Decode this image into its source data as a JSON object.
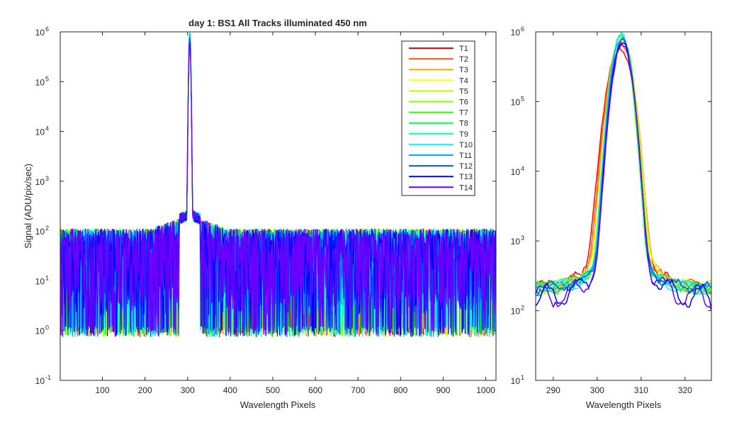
{
  "chart_data": [
    {
      "type": "line",
      "title": "day 1: BS1   All Tracks illuminated   450 nm",
      "xlabel": "Wavelength Pixels",
      "ylabel": "Signal (ADU/pix/sec)",
      "xlim": [
        1,
        1024
      ],
      "ylim": [
        0.1,
        1000000
      ],
      "yscale": "log",
      "xticks": [
        100,
        200,
        300,
        400,
        500,
        600,
        700,
        800,
        900,
        1000
      ],
      "xtick_labels": [
        "100",
        "200",
        "300",
        "400",
        "500",
        "600",
        "700",
        "800",
        "900",
        "1000"
      ],
      "yticks": [
        0.1,
        1,
        10,
        100,
        1000,
        10000,
        100000,
        1000000
      ],
      "ytick_labels": [
        "10",
        "10",
        "10",
        "10",
        "10",
        "10",
        "10",
        "10"
      ],
      "ytick_exponents": [
        "-1",
        "0",
        "1",
        "2",
        "3",
        "4",
        "5",
        "6"
      ],
      "legend_position": "top-right",
      "peak_x": 305,
      "series": [
        {
          "name": "T1",
          "color": "#ff0000",
          "peak": 600000
        },
        {
          "name": "T2",
          "color": "#ff5a00",
          "peak": 700000
        },
        {
          "name": "T3",
          "color": "#ffaa00",
          "peak": 850000
        },
        {
          "name": "T4",
          "color": "#ffff00",
          "peak": 800000
        },
        {
          "name": "T5",
          "color": "#bfff00",
          "peak": 820000
        },
        {
          "name": "T6",
          "color": "#80ff00",
          "peak": 850000
        },
        {
          "name": "T7",
          "color": "#2aff00",
          "peak": 870000
        },
        {
          "name": "T8",
          "color": "#00ff55",
          "peak": 880000
        },
        {
          "name": "T9",
          "color": "#00ffaa",
          "peak": 900000
        },
        {
          "name": "T10",
          "color": "#00ffff",
          "peak": 920000
        },
        {
          "name": "T11",
          "color": "#00aaff",
          "peak": 850000
        },
        {
          "name": "T12",
          "color": "#0055ff",
          "peak": 780000
        },
        {
          "name": "T13",
          "color": "#0000ff",
          "peak": 700000
        },
        {
          "name": "T14",
          "color": "#6a00ff",
          "peak": 650000
        }
      ]
    },
    {
      "type": "line",
      "title": "",
      "xlabel": "Wavelength Pixels",
      "ylabel": "",
      "xlim": [
        286,
        326
      ],
      "ylim": [
        10,
        1000000
      ],
      "yscale": "log",
      "xticks": [
        290,
        300,
        310,
        320
      ],
      "xtick_labels": [
        "290",
        "300",
        "310",
        "320"
      ],
      "yticks": [
        10,
        100,
        1000,
        10000,
        100000,
        1000000
      ],
      "ytick_labels": [
        "10",
        "10",
        "10",
        "10",
        "10",
        "10"
      ],
      "ytick_exponents": [
        "1",
        "2",
        "3",
        "4",
        "5",
        "6"
      ],
      "peak_x": 305.5
    }
  ]
}
